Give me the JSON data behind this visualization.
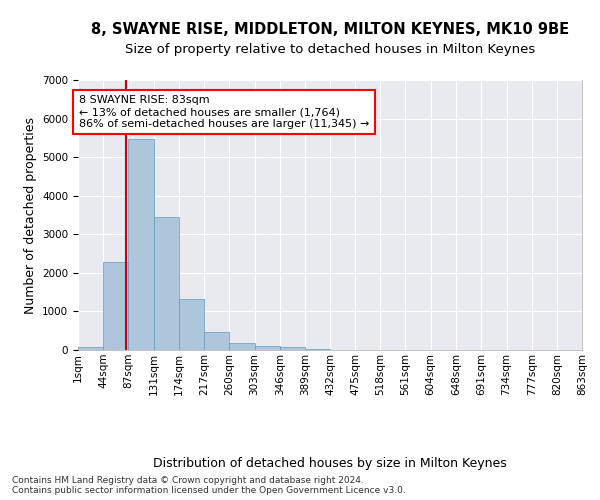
{
  "title": "8, SWAYNE RISE, MIDDLETON, MILTON KEYNES, MK10 9BE",
  "subtitle": "Size of property relative to detached houses in Milton Keynes",
  "xlabel": "Distribution of detached houses by size in Milton Keynes",
  "ylabel": "Number of detached properties",
  "background_color": "#e8eaf0",
  "bar_color": "#aec6dc",
  "bar_edge_color": "#6699bb",
  "grid_color": "#ffffff",
  "annotation_text": "8 SWAYNE RISE: 83sqm\n← 13% of detached houses are smaller (1,764)\n86% of semi-detached houses are larger (11,345) →",
  "vline_color": "#cc0000",
  "vline_x": 83,
  "footer_text": "Contains HM Land Registry data © Crown copyright and database right 2024.\nContains public sector information licensed under the Open Government Licence v3.0.",
  "bin_edges": [
    1,
    44,
    87,
    131,
    174,
    217,
    260,
    303,
    346,
    389,
    432,
    475,
    518,
    561,
    604,
    648,
    691,
    734,
    777,
    820,
    863
  ],
  "bin_labels": [
    "1sqm",
    "44sqm",
    "87sqm",
    "131sqm",
    "174sqm",
    "217sqm",
    "260sqm",
    "303sqm",
    "346sqm",
    "389sqm",
    "432sqm",
    "475sqm",
    "518sqm",
    "561sqm",
    "604sqm",
    "648sqm",
    "691sqm",
    "734sqm",
    "777sqm",
    "820sqm",
    "863sqm"
  ],
  "bar_heights": [
    80,
    2280,
    5480,
    3440,
    1310,
    460,
    175,
    100,
    65,
    35,
    10,
    5,
    3,
    2,
    1,
    1,
    0,
    0,
    0,
    0
  ],
  "ylim": [
    0,
    7000
  ],
  "yticks": [
    0,
    1000,
    2000,
    3000,
    4000,
    5000,
    6000,
    7000
  ],
  "title_fontsize": 10.5,
  "subtitle_fontsize": 9.5,
  "axis_label_fontsize": 9,
  "tick_fontsize": 7.5,
  "footer_fontsize": 6.5,
  "annotation_fontsize": 8
}
